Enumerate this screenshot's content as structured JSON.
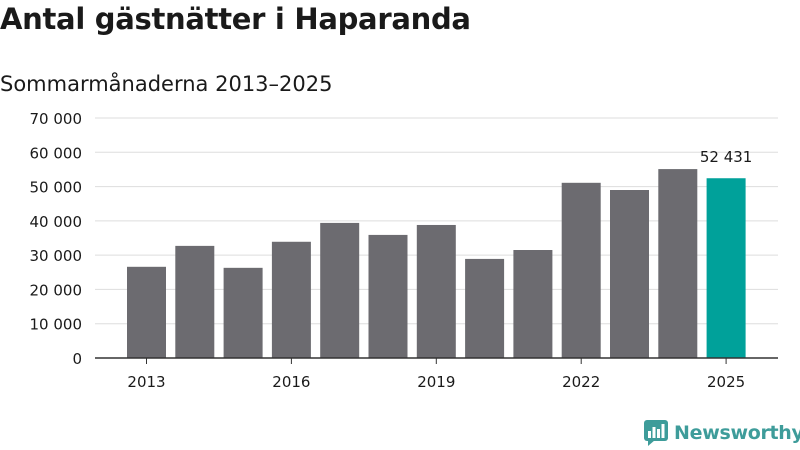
{
  "header": {
    "title": "Antal gästnätter i Haparanda",
    "subtitle": "Sommarmånaderna 2013–2025"
  },
  "brand": {
    "name": "Newsworthy",
    "icon": "bar-chart-speech-bubble-icon",
    "color": "#3e9c9a"
  },
  "chart_data": {
    "type": "bar",
    "title": "Antal gästnätter i Haparanda",
    "subtitle": "Sommarmånaderna 2013–2025",
    "xlabel": "",
    "ylabel": "",
    "categories": [
      "2013",
      "2014",
      "2015",
      "2016",
      "2017",
      "2018",
      "2019",
      "2020",
      "2021",
      "2022",
      "2023",
      "2024",
      "2025"
    ],
    "x_tick_labels": [
      "2013",
      "2016",
      "2019",
      "2022",
      "2025"
    ],
    "y_ticks": [
      0,
      10000,
      20000,
      30000,
      40000,
      50000,
      60000,
      70000
    ],
    "y_tick_labels": [
      "0",
      "10 000",
      "20 000",
      "30 000",
      "40 000",
      "50 000",
      "60 000",
      "70 000"
    ],
    "ylim": [
      0,
      70000
    ],
    "grid": true,
    "series": [
      {
        "values": [
          26600,
          32700,
          26300,
          33900,
          39400,
          35900,
          38800,
          28900,
          31500,
          51100,
          49000,
          55100,
          52431
        ]
      }
    ],
    "annotations": [
      {
        "category": "2025",
        "label": "52 431"
      }
    ],
    "colors": {
      "bar": "#6c6b70",
      "highlight": "#00a19a",
      "grid": "#dddddd",
      "axis": "#333333"
    },
    "highlight_category": "2025"
  }
}
